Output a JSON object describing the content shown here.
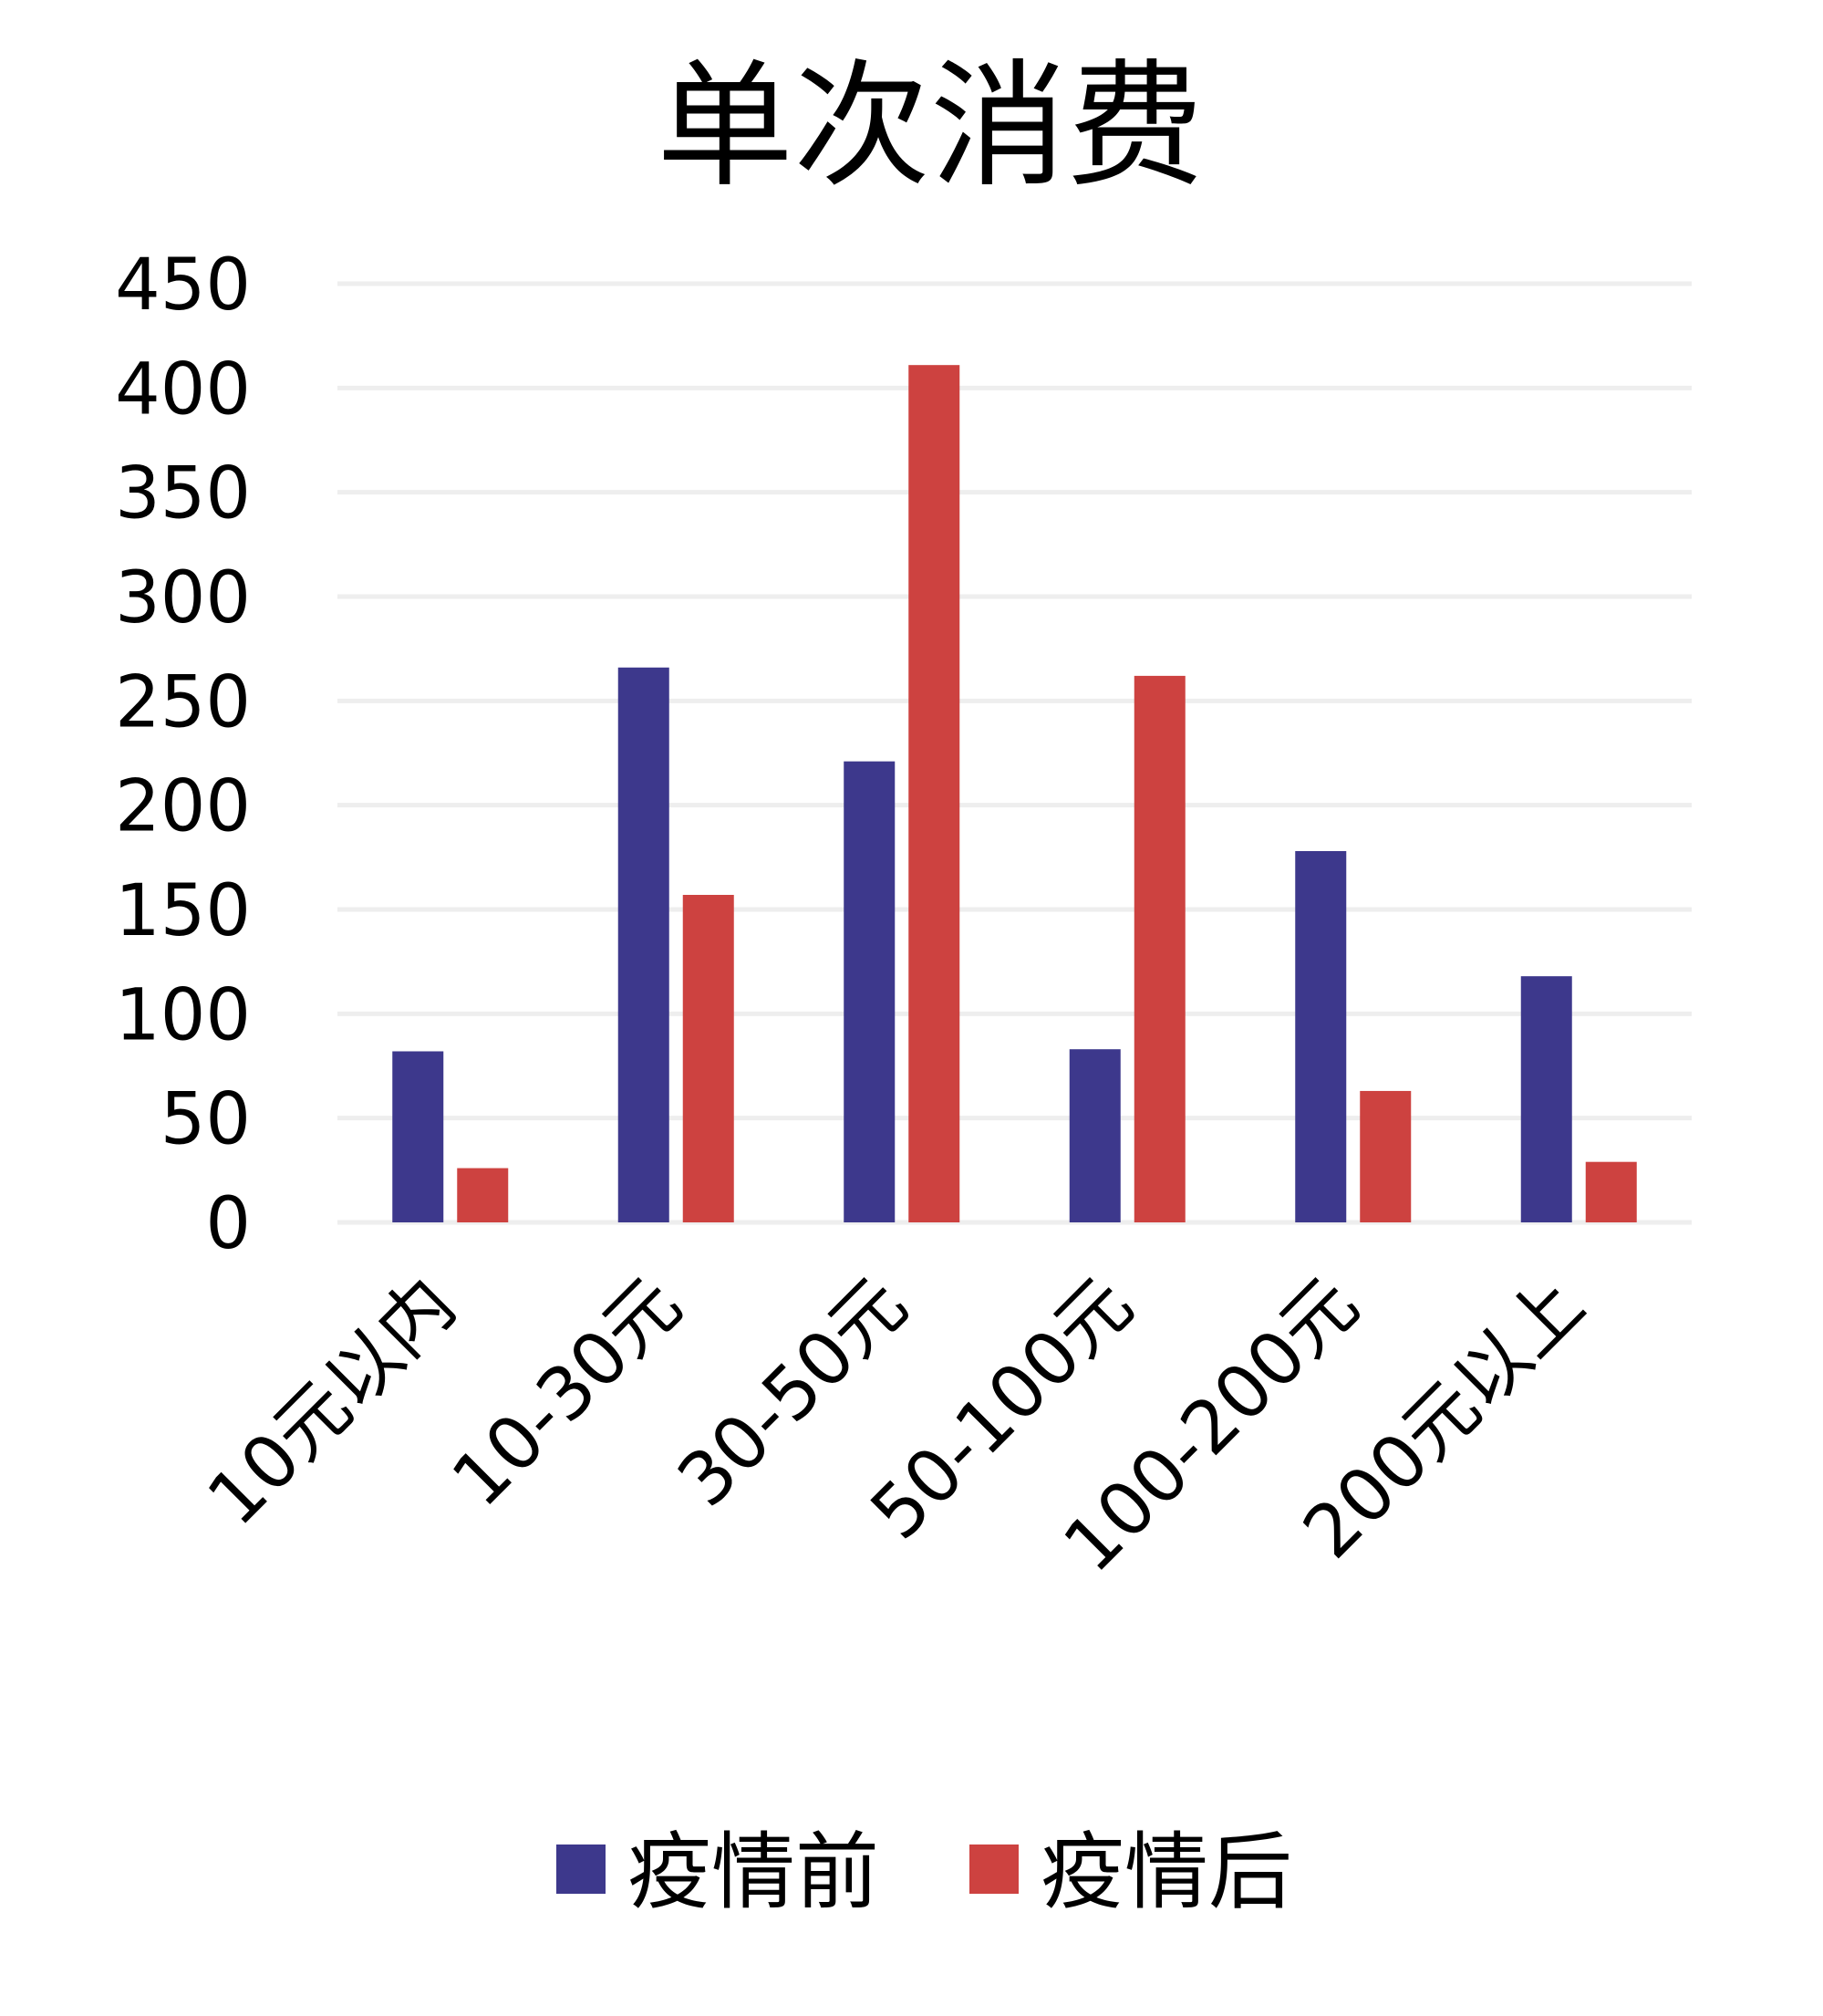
{
  "chart_data": {
    "type": "bar",
    "title": "单次消费",
    "categories": [
      "10元以内",
      "10-30元",
      "30-50元",
      "50-100元",
      "100-200元",
      "200元以上"
    ],
    "series": [
      {
        "name": "疫情前",
        "color": "#3d388c",
        "values": [
          82,
          266,
          221,
          83,
          178,
          118
        ]
      },
      {
        "name": "疫情后",
        "color": "#cd4240",
        "values": [
          26,
          157,
          411,
          262,
          63,
          29
        ]
      }
    ],
    "yticks": [
      "0",
      "50",
      "100",
      "150",
      "200",
      "250",
      "300",
      "350",
      "400",
      "450"
    ],
    "ylim": [
      0,
      450
    ],
    "grid": true,
    "legend": "bottom"
  }
}
